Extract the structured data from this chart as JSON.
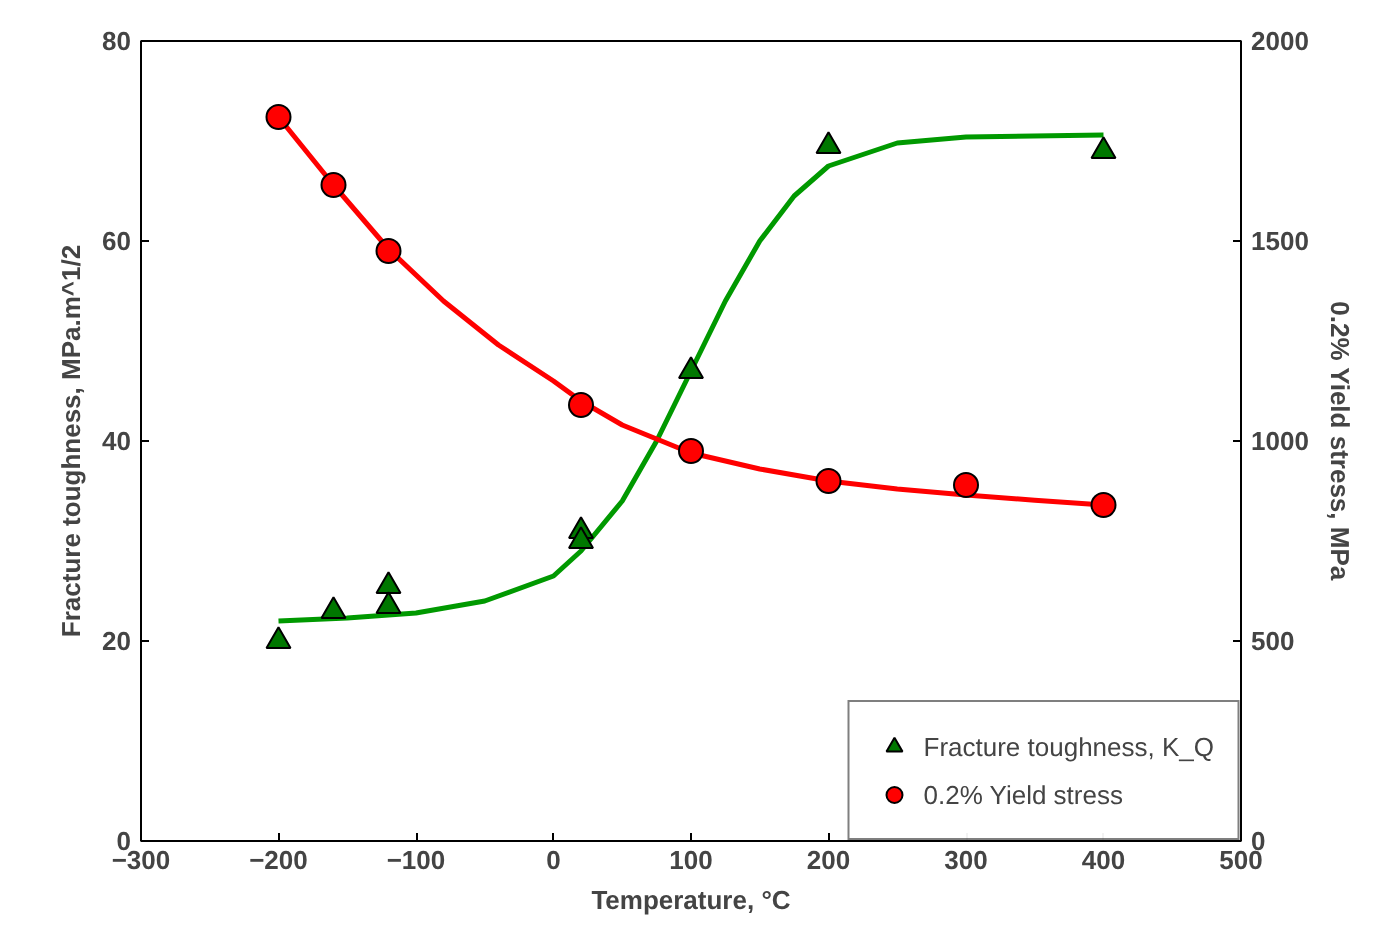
{
  "chart_data": {
    "type": "scatter",
    "xlabel": "Temperature, °C",
    "ylabel": "Fracture toughness, MPa.m^1/2",
    "y2label": "0.2% Yield stress, MPa",
    "xlim": [
      -300,
      500
    ],
    "xticks": [
      -300,
      -200,
      -100,
      0,
      100,
      200,
      300,
      400,
      500
    ],
    "ylim": [
      0,
      80
    ],
    "yticks": [
      0,
      20,
      40,
      60,
      80
    ],
    "y2lim": [
      0,
      2000
    ],
    "y2ticks": [
      0,
      500,
      1000,
      1500,
      2000
    ],
    "grid": false,
    "legend": "bottom right",
    "series": [
      {
        "type": "line",
        "color": "#009900",
        "marker": "none",
        "x": [
          -200,
          -150,
          -100,
          -50,
          0,
          20,
          50,
          75,
          100,
          125,
          150,
          175,
          200,
          250,
          300,
          400
        ],
        "values": [
          22,
          22.3,
          22.8,
          24,
          26.5,
          29,
          34,
          40,
          47,
          54,
          60,
          64.5,
          67.5,
          69.8,
          70.4,
          70.6
        ]
      },
      {
        "type": "line",
        "color": "#ff0000",
        "marker": "none",
        "axis": "y2",
        "x": [
          -200,
          -160,
          -120,
          -80,
          -40,
          0,
          20,
          50,
          100,
          150,
          200,
          250,
          300,
          350,
          400
        ],
        "values": [
          1810,
          1640,
          1480,
          1350,
          1240,
          1150,
          1100,
          1040,
          970,
          930,
          900,
          880,
          865,
          852,
          840
        ]
      },
      {
        "name": "Fracture toughness, K_Q",
        "color": "#007700",
        "marker": "triangle",
        "x": [
          -200,
          -160,
          -120,
          -120,
          20,
          20,
          100,
          200,
          400
        ],
        "values": [
          20,
          23,
          25.5,
          23.5,
          31,
          30,
          47,
          69.5,
          69
        ]
      },
      {
        "name": "0.2% Yield stress",
        "color": "#ff0000",
        "marker": "circle",
        "axis": "y2",
        "x": [
          -200,
          -160,
          -120,
          20,
          100,
          200,
          300,
          400
        ],
        "values": [
          1810,
          1640,
          1475,
          1090,
          975,
          900,
          890,
          840
        ]
      }
    ]
  }
}
